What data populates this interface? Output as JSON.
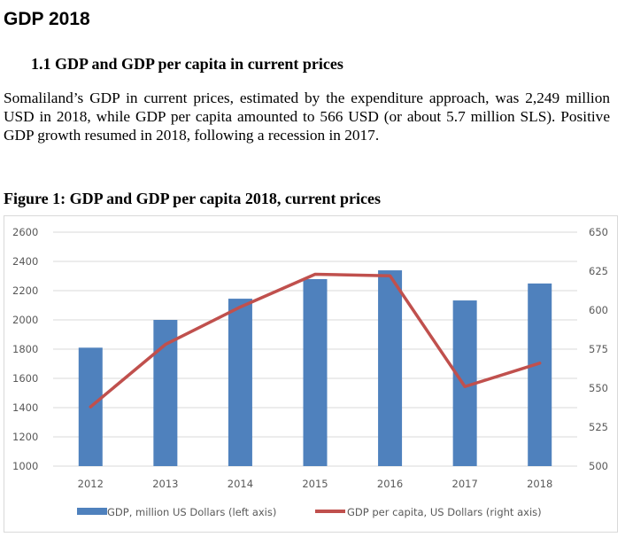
{
  "page": {
    "title": "GDP 2018",
    "section_heading": "1.1 GDP and GDP per capita in current prices",
    "paragraph": "Somaliland’s GDP in current prices, estimated by the expenditure approach, was 2,249 million USD in 2018, while GDP per capita amounted to 566 USD (or about 5.7 million SLS). Positive GDP growth resumed in 2018, following a recession in 2017.",
    "figure_caption": "Figure 1: GDP and GDP per capita 2018, current prices"
  },
  "chart_data": {
    "type": "bar",
    "title": "Figure 1: GDP and GDP per capita 2018, current prices",
    "categories": [
      "2012",
      "2013",
      "2014",
      "2015",
      "2016",
      "2017",
      "2018"
    ],
    "series": [
      {
        "name": "GDP, million US Dollars (left axis)",
        "type": "bar",
        "axis": "left",
        "color": "#4f81bd",
        "values": [
          1810,
          2000,
          2145,
          2279,
          2339,
          2133,
          2249
        ]
      },
      {
        "name": "GDP per capita, US Dollars (right axis)",
        "type": "line",
        "axis": "right",
        "color": "#c0504d",
        "values": [
          538,
          578,
          602,
          623,
          622,
          551,
          566
        ]
      }
    ],
    "left_axis": {
      "ylim": [
        1000,
        2600
      ],
      "ticks": [
        "2600",
        "2400",
        "2200",
        "2000",
        "1800",
        "1600",
        "1400",
        "1200",
        "1000"
      ]
    },
    "right_axis": {
      "ylim": [
        500,
        650
      ],
      "ticks": [
        "650",
        "625",
        "600",
        "575",
        "550",
        "525",
        "500"
      ]
    },
    "xlabel": "",
    "ylabel": "",
    "grid": true,
    "legend_position": "bottom"
  }
}
